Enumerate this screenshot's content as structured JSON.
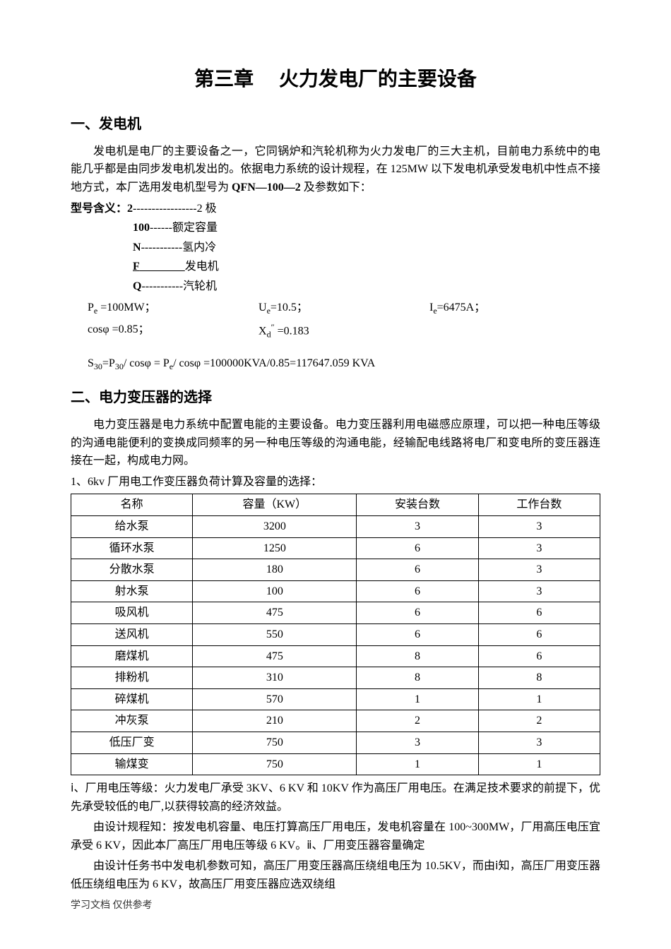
{
  "title": "第三章　 火力发电厂的主要设备",
  "sec1": {
    "heading": "一、发电机",
    "p1": "发电机是电厂的主要设备之一，它同锅炉和汽轮机称为火力发电厂的三大主机，目前电力系统中的电能几乎都是由同步发电机发出的。依据电力系统的设计规程，在 125MW 以下发电机承受发电机中性点不接地方式，本厂选用发电机型号为 ",
    "model_bold": "QFN—100—2",
    "p1_tail": " 及参数如下：",
    "model_label": "型号含义：",
    "m1a": "2",
    "m1b": "-----------------2 极",
    "m2a": "100",
    "m2b": "------额定容量",
    "m3a": "N",
    "m3b": "-----------氢内冷",
    "m4a": "F",
    "m4b": "发电机",
    "m4gap": "　　　　",
    "m5a": "Q",
    "m5b": "-----------汽轮机",
    "param_Pe": "=100MW；",
    "param_Ue": "=10.5；",
    "param_Ie": "=6475A；",
    "param_cos": "cosφ =0.85；",
    "param_Xd": " =0.183",
    "calc": "= P",
    "calc_full1": "S",
    "calc_full2": "=P",
    "calc_full3": "/ cosφ  = P",
    "calc_full4": "/ cosφ =100000KVA/0.85=117647.059 KVA"
  },
  "sec2": {
    "heading": "二、电力变压器的选择",
    "p1": "电力变压器是电力系统中配置电能的主要设备。电力变压器利用电磁感应原理，可以把一种电压等级的沟通电能便利的变换成同频率的另一种电压等级的沟通电能，经输配电线路将电厂和变电所的变压器连接在一起，构成电力网。",
    "p2": "1、6kv 厂用电工作变压器负荷计算及容量的选择：",
    "table": {
      "columns": [
        "名称",
        "容量（KW）",
        "安装台数",
        "工作台数"
      ],
      "rows": [
        [
          "给水泵",
          "3200",
          "3",
          "3"
        ],
        [
          "循环水泵",
          "1250",
          "6",
          "3"
        ],
        [
          "分散水泵",
          "180",
          "6",
          "3"
        ],
        [
          "射水泵",
          "100",
          "6",
          "3"
        ],
        [
          "吸风机",
          "475",
          "6",
          "6"
        ],
        [
          "送风机",
          "550",
          "6",
          "6"
        ],
        [
          "磨煤机",
          "475",
          "8",
          "6"
        ],
        [
          "排粉机",
          "310",
          "8",
          "8"
        ],
        [
          "碎煤机",
          "570",
          "1",
          "1"
        ],
        [
          "冲灰泵",
          "210",
          "2",
          "2"
        ],
        [
          "低压厂变",
          "750",
          "3",
          "3"
        ],
        [
          "输煤变",
          "750",
          "1",
          "1"
        ]
      ]
    },
    "p3": "ⅰ、厂用电压等级：火力发电厂承受 3KV、6 KV 和 10KV 作为高压厂用电压。在满足技术要求的前提下，优先承受较低的电厂,以获得较高的经济效益。",
    "p4": "由设计规程知：按发电机容量、电压打算高压厂用电压，发电机容量在 100~300MW，厂用高压电压宜承受 6 KV，因此本厂高压厂用电压等级 6 KV。ⅱ、厂用变压器容量确定",
    "p5": "由设计任务书中发电机参数可知，高压厂用变压器高压绕组电压为 10.5KV，而由ⅰ知，高压厂用变压器低压绕组电压为 6 KV，故高压厂用变压器应选双绕组"
  },
  "footer": "学习文档 仅供参考"
}
